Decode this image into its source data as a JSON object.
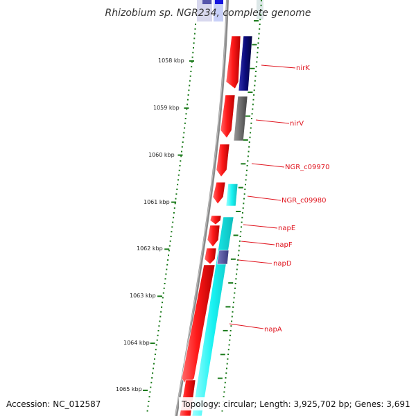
{
  "title": "Rhizobium sp. NGR234, complete genome",
  "accession": "Accession: NC_012587",
  "topology": "Topology: circular; Length: 3,925,702 bp; Genes: 3,691",
  "scale": [
    {
      "label": "1058 kbp"
    },
    {
      "label": "1059 kbp"
    },
    {
      "label": "1060 kbp"
    },
    {
      "label": "1061 kbp"
    },
    {
      "label": "1062 kbp"
    },
    {
      "label": "1063 kbp"
    },
    {
      "label": "1064 kbp"
    },
    {
      "label": "1065 kbp"
    }
  ],
  "gene_labels": [
    {
      "name": "nirK"
    },
    {
      "name": "nirV"
    },
    {
      "name": "NGR_c09970"
    },
    {
      "name": "NGR_c09980"
    },
    {
      "name": "napE"
    },
    {
      "name": "napF"
    },
    {
      "name": "napD"
    },
    {
      "name": "napA"
    }
  ],
  "colors": {
    "cds": "#ff1a1a",
    "navy": "#0b0b7a",
    "gray": "#6e6e6e",
    "cyan": "#19f2f2",
    "purple": "#4b4a96",
    "tick": "#1a7a1a",
    "backbone": "#8a8a8a"
  }
}
